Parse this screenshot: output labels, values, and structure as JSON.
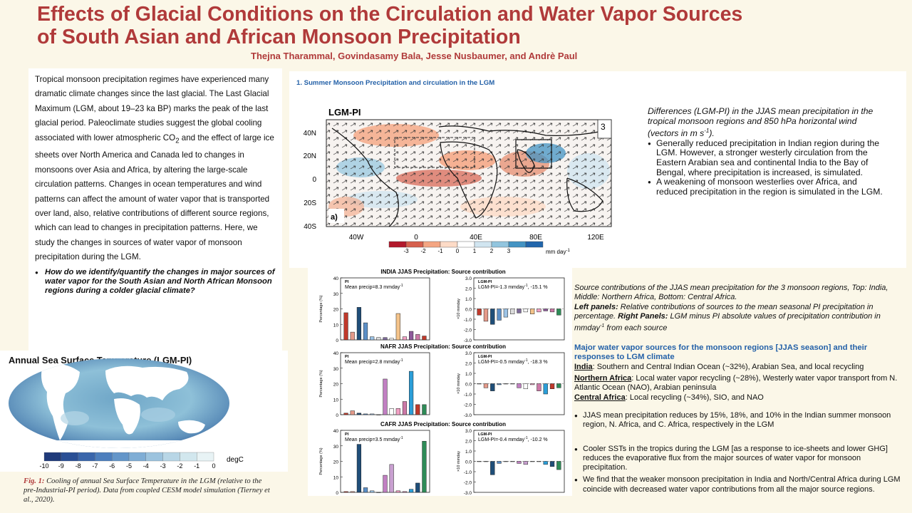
{
  "title": {
    "line1": "Effects of Glacial Conditions on the Circulation and Water Vapor Sources",
    "line2": "of South Asian and African Monsoon Precipitation",
    "authors": "Thejna Tharammal, Govindasamy Bala, Jesse Nusbaumer, and Andrè Paul"
  },
  "intro": {
    "p1": "Tropical monsoon precipitation regimes have experienced many dramatic climate changes since the last glacial. The Last Glacial Maximum (LGM, about 19–23 ka BP) marks the peak of the last glacial period. Paleoclimate studies suggest the global cooling associated with lower atmospheric CO",
    "p1_sub": "2",
    "p1_rest": " and the effect of large ice sheets over North America and Canada led to changes in monsoons over Asia and Africa, by altering the large-scale circulation patterns. Changes in ocean temperatures and wind patterns can affect the amount of water vapor that is transported over land, also, relative contributions of different source regions, which can lead to changes in precipitation patterns. Here, we study the changes in sources of water vapor of monsoon precipitation during the LGM.",
    "question": "How do we identify/quantify the changes in major sources of water vapor for the South Asian and North African Monsoon regions during a colder glacial climate?"
  },
  "sst_panel": {
    "title": "Annual Sea Surface Temperature (LGM-PI)",
    "colorbar_ticks": [
      "-10",
      "-9",
      "-8",
      "-7",
      "-6",
      "-5",
      "-4",
      "-3",
      "-2",
      "-1",
      "0"
    ],
    "unit": "degC",
    "colors": [
      "#1f3a7a",
      "#2a4f95",
      "#3a66ab",
      "#4d7fbd",
      "#6496c9",
      "#7fadd5",
      "#9cc3de",
      "#b8d6e6",
      "#d2e7ee",
      "#e8f3f5"
    ]
  },
  "fig1": {
    "label": "Fig. 1:",
    "text": " Cooling of annual Sea Surface Temperature in the LGM (relative to the pre-Industrial-PI period). Data from coupled CESM model simulation (Tierney et al., 2020)."
  },
  "panel1": {
    "heading": "1. Summer Monsoon Precipitation and circulation in the LGM",
    "map_title": "LGM-PI",
    "panel_label": "a)",
    "vector_ref": "3",
    "lat_labels": [
      "40N",
      "20N",
      "0",
      "20S",
      "40S"
    ],
    "lon_labels": [
      "40W",
      "0",
      "40E",
      "80E",
      "120E"
    ],
    "cbar_ticks": [
      "-3",
      "-2",
      "-1",
      "0",
      "1",
      "2",
      "3"
    ],
    "cbar_unit": "mm day",
    "cbar_unit_sup": "-1",
    "cbar_colors": [
      "#b2182b",
      "#d6604d",
      "#f4a582",
      "#fddbc7",
      "#ffffff",
      "#d1e5f0",
      "#92c5de",
      "#4393c3",
      "#2166ac"
    ]
  },
  "map_text": {
    "caption": "Differences (LGM-PI) in the JJAS mean precipitation in the tropical monsoon regions and 850 hPa horizontal wind (vectors in m s",
    "caption_sup": "-1",
    "caption_end": ").",
    "bullets": [
      "Generally reduced precipitation in Indian region during the LGM. However, a stronger westerly circulation from the Eastern Arabian sea and continental India to the Bay of Bengal, where precipitation is increased, is simulated.",
      "A weakening of monsoon westerlies over Africa, and reduced precipitation in the region is simulated in the LGM."
    ]
  },
  "chart_data": [
    {
      "type": "bar",
      "title": "INDIA JJAS Precipitation: Source contribution",
      "panel": "PI",
      "annotation": "Mean precip=8.3 mmday",
      "annotation_sup": "-1",
      "ylabel": "Percentage (%)",
      "ylim": [
        0,
        40
      ],
      "yticks": [
        "0",
        "10",
        "20",
        "30",
        "40"
      ],
      "values": [
        17.5,
        5,
        21,
        11,
        2,
        1.5,
        1.5,
        1,
        17,
        2,
        5.5,
        3.5,
        2.5
      ],
      "colors": [
        "#c0392b",
        "#e59a8a",
        "#1f4e79",
        "#5b8fc7",
        "#9cc3e6",
        "#dcdcdc",
        "#7d6a9a",
        "#ffffff",
        "#f4c38a",
        "#f2a0c4",
        "#8e5a9b",
        "#cc79a7",
        "#c0392b"
      ]
    },
    {
      "type": "bar",
      "title": "",
      "panel": "LGM-PI",
      "annotation": "LGM-PI=-1.3 mmday",
      "annotation_sup": "-1",
      "annotation_end": ", -15.1 %",
      "ylabel": "×10 mmday",
      "ylim": [
        -3,
        3
      ],
      "yticks": [
        "3.0",
        "2.0",
        "1.0",
        "0.0",
        "-1.0",
        "-2.0",
        "-3.0"
      ],
      "values": [
        -0.6,
        -1.2,
        -1.5,
        -1.1,
        -0.8,
        -0.5,
        -0.4,
        -0.3,
        -0.5,
        -0.3,
        -0.2,
        -0.3,
        -0.6
      ],
      "colors": [
        "#c0392b",
        "#e59a8a",
        "#1f4e79",
        "#5b8fc7",
        "#9cc3e6",
        "#dcdcdc",
        "#7d6a9a",
        "#ffffff",
        "#f4c38a",
        "#f2a0c4",
        "#8e5a9b",
        "#cc79a7",
        "#2e8b57"
      ]
    },
    {
      "type": "bar",
      "title": "NAFR JJAS Precipitation: Source contribution",
      "panel": "PI",
      "annotation": "Mean precip=2.8 mmday",
      "annotation_sup": "-1",
      "ylabel": "Percentage (%)",
      "ylim": [
        0,
        40
      ],
      "yticks": [
        "0",
        "10",
        "20",
        "30",
        "40"
      ],
      "values": [
        1,
        2.5,
        1,
        0.5,
        0.5,
        0,
        23,
        4,
        4,
        8.5,
        28,
        6.5,
        6.5
      ],
      "colors": [
        "#c0392b",
        "#e59a8a",
        "#1f4e79",
        "#5b8fc7",
        "#9cc3e6",
        "#dcdcdc",
        "#c17fc2",
        "#ffffff",
        "#f2a0c4",
        "#cc79a7",
        "#2b9ed8",
        "#c0392b",
        "#2e8b57"
      ]
    },
    {
      "type": "bar",
      "title": "",
      "panel": "LGM-PI",
      "annotation": "LGM-PI=-0.5 mmday",
      "annotation_sup": "-1",
      "annotation_end": ", -18.3 %",
      "ylabel": "×10 mmday",
      "ylim": [
        -3,
        3
      ],
      "yticks": [
        "3.0",
        "2.0",
        "1.0",
        "0.0",
        "-1.0",
        "-2.0",
        "-3.0"
      ],
      "values": [
        0,
        -0.4,
        -0.7,
        -0.1,
        0,
        0,
        -0.4,
        -0.5,
        -0.1,
        -0.7,
        -1,
        -0.5,
        -0.4
      ],
      "colors": [
        "#c0392b",
        "#e59a8a",
        "#1f4e79",
        "#5b8fc7",
        "#9cc3e6",
        "#dcdcdc",
        "#c17fc2",
        "#ffffff",
        "#f2a0c4",
        "#cc79a7",
        "#2b9ed8",
        "#c0392b",
        "#2e8b57"
      ]
    },
    {
      "type": "bar",
      "title": "CAFR JJAS Precipitation: Source contribution",
      "panel": "PI",
      "annotation": "Mean precip=3.5 mmday",
      "annotation_sup": "-1",
      "ylabel": "Percentage (%)",
      "ylim": [
        0,
        40
      ],
      "yticks": [
        "0",
        "10",
        "20",
        "30",
        "40"
      ],
      "values": [
        0.5,
        0.5,
        31,
        3,
        1,
        0,
        11,
        18,
        1,
        0.5,
        2,
        6,
        33
      ],
      "colors": [
        "#c0392b",
        "#e59a8a",
        "#1f4e79",
        "#5b8fc7",
        "#9cc3e6",
        "#dcdcdc",
        "#c17fc2",
        "#c8a0d0",
        "#f2a0c4",
        "#cc79a7",
        "#2b9ed8",
        "#1f4e79",
        "#2e8b57"
      ]
    },
    {
      "type": "bar",
      "title": "",
      "panel": "LGM-PI",
      "annotation": "LGM-PI=-0.4 mmday",
      "annotation_sup": "-1",
      "annotation_end": ", -10.2 %",
      "ylabel": "×10 mmday",
      "ylim": [
        -3,
        3
      ],
      "yticks": [
        "3.0",
        "2.0",
        "1.0",
        "0.0",
        "-1.0",
        "-2.0",
        "-3.0"
      ],
      "values": [
        0,
        0,
        -1.3,
        -0.2,
        0,
        0,
        -0.2,
        -0.3,
        0,
        0,
        -0.3,
        -0.5,
        -0.8
      ],
      "colors": [
        "#c0392b",
        "#e59a8a",
        "#1f4e79",
        "#5b8fc7",
        "#9cc3e6",
        "#dcdcdc",
        "#c17fc2",
        "#c8a0d0",
        "#f2a0c4",
        "#cc79a7",
        "#2b9ed8",
        "#1f4e79",
        "#2e8b57"
      ]
    }
  ],
  "right": {
    "caption1": " Source  contributions of the JJAS mean precipitation for the 3 monsoon regions, Top: India, Middle: Northern Africa, Bottom: Central Africa.",
    "caption2_bold": "Left panels:",
    "caption2": " Relative contributions of sources to the mean seasonal PI precipitation in percentage. ",
    "caption2_bold2": "Right Panels:",
    "caption2_rest": " LGM minus PI absolute values of precipitation contribution in mmday",
    "caption2_sup": "-1",
    "caption2_end": " from each source",
    "vapor_heading": "Major water vapor sources for the monsoon regions [JJAS season] and their responses to LGM climate",
    "india_label": "India",
    "india_text": ": Southern and Central Indian Ocean (~32%), Arabian Sea, and local recycling",
    "nafr_label": "Northern Africa",
    "nafr_text": ": Local water vapor recycling (~28%), Westerly water vapor transport from N. Atlantic Ocean (NAO), Arabian peninsula",
    "cafr_label": "Central Africa",
    "cafr_text": ": Local recycling (~34%), SIO, and NAO",
    "bullets": [
      "JJAS mean precipitation reduces by 15%, 18%, and 10% in the Indian summer monsoon region, N. Africa, and C. Africa, respectively in the LGM",
      "Cooler SSTs in the tropics during the LGM [as a response to ice-sheets and lower GHG] reduces the evaporative flux from the major sources of water vapor for monsoon precipitation.",
      "We find that the weaker monsoon precipitation in India and North/Central Africa during LGM coincide with decreased water vapor contributions from all the major source regions."
    ]
  }
}
